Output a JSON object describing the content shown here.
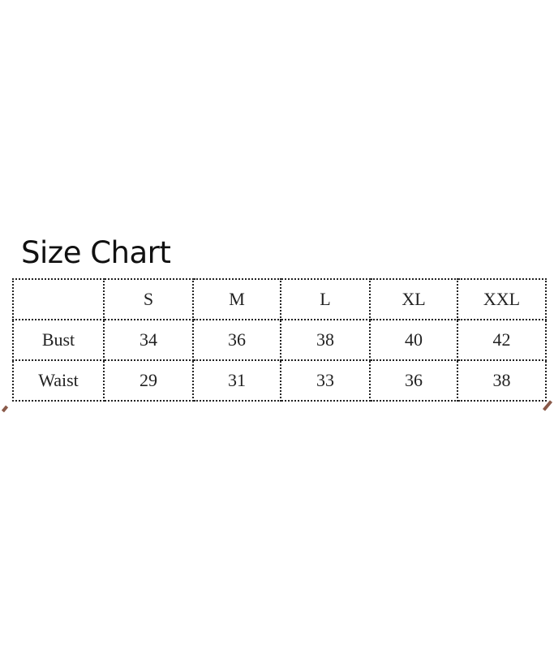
{
  "chart_data": {
    "type": "table",
    "title": "Size Chart",
    "columns": [
      "",
      "S",
      "M",
      "L",
      "XL",
      "XXL"
    ],
    "rows": [
      {
        "label": "Bust",
        "values": [
          "34",
          "36",
          "38",
          "40",
          "42"
        ]
      },
      {
        "label": "Waist",
        "values": [
          "29",
          "31",
          "33",
          "36",
          "38"
        ]
      }
    ]
  }
}
